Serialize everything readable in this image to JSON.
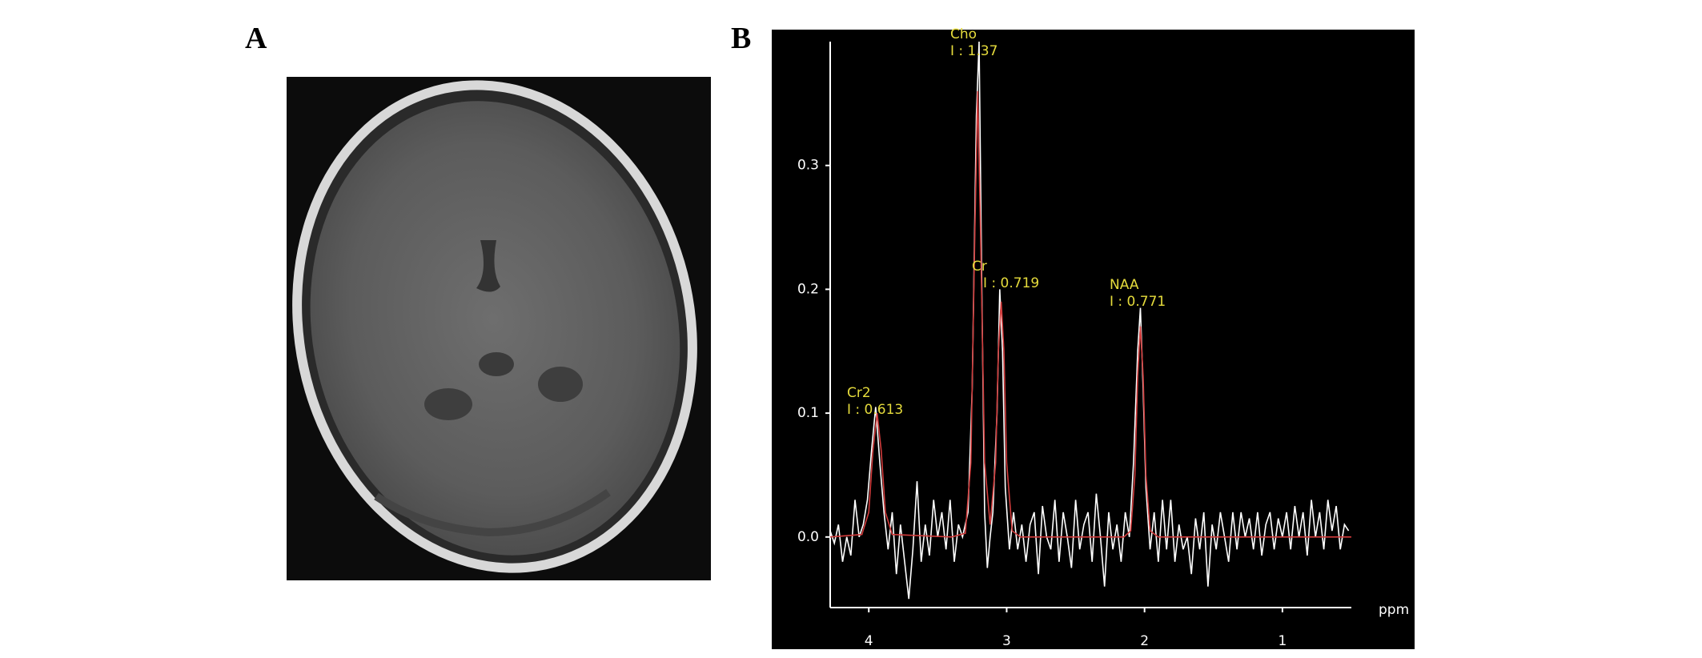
{
  "panel_a": {
    "label": "A"
  },
  "chart_data": {
    "type": "line",
    "label": "B",
    "x_label": "ppm",
    "xlim": [
      4.28,
      0.5
    ],
    "ylim": [
      -0.057,
      0.4
    ],
    "xticks": [
      4,
      3,
      2,
      1
    ],
    "yticks": [
      {
        "value": 0,
        "label": "0.0"
      },
      0.1,
      0.2,
      0.3
    ],
    "annotation_color": "#e6dc3c",
    "annotations": [
      [
        "Cr2",
        "I : 0.613"
      ],
      [
        "Cho",
        "I : 1.37"
      ],
      [
        "Cr",
        "I : 0.719"
      ],
      [
        "NAA",
        "I : 0.771"
      ]
    ],
    "series": [
      {
        "color": "#ffffff",
        "x": [
          4.28,
          4.25,
          4.22,
          4.19,
          4.16,
          4.13,
          4.1,
          4.07,
          4.04,
          4.01,
          3.98,
          3.95,
          3.92,
          3.89,
          3.86,
          3.83,
          3.8,
          3.77,
          3.74,
          3.71,
          3.68,
          3.65,
          3.62,
          3.59,
          3.56,
          3.53,
          3.5,
          3.47,
          3.44,
          3.41,
          3.38,
          3.35,
          3.32,
          3.28,
          3.25,
          3.22,
          3.2,
          3.18,
          3.16,
          3.14,
          3.12,
          3.1,
          3.07,
          3.05,
          3.03,
          3.01,
          2.98,
          2.95,
          2.92,
          2.89,
          2.86,
          2.83,
          2.8,
          2.77,
          2.74,
          2.71,
          2.68,
          2.65,
          2.62,
          2.59,
          2.56,
          2.53,
          2.5,
          2.47,
          2.44,
          2.41,
          2.38,
          2.35,
          2.32,
          2.29,
          2.26,
          2.23,
          2.2,
          2.17,
          2.14,
          2.11,
          2.08,
          2.05,
          2.03,
          2.01,
          1.99,
          1.96,
          1.93,
          1.9,
          1.87,
          1.84,
          1.81,
          1.78,
          1.75,
          1.72,
          1.69,
          1.66,
          1.63,
          1.6,
          1.57,
          1.54,
          1.51,
          1.48,
          1.45,
          1.42,
          1.39,
          1.36,
          1.33,
          1.3,
          1.27,
          1.24,
          1.21,
          1.18,
          1.15,
          1.12,
          1.09,
          1.06,
          1.03,
          1.0,
          0.97,
          0.94,
          0.91,
          0.88,
          0.85,
          0.82,
          0.79,
          0.76,
          0.73,
          0.7,
          0.67,
          0.64,
          0.61,
          0.58,
          0.55,
          0.52
        ],
        "values": [
          0.005,
          -0.005,
          0.01,
          -0.02,
          0.0,
          -0.015,
          0.03,
          0.0,
          0.01,
          0.03,
          0.07,
          0.105,
          0.06,
          0.02,
          -0.01,
          0.02,
          -0.03,
          0.01,
          -0.02,
          -0.05,
          -0.01,
          0.045,
          -0.02,
          0.01,
          -0.015,
          0.03,
          0.0,
          0.02,
          -0.01,
          0.03,
          -0.02,
          0.01,
          0.0,
          0.02,
          0.12,
          0.34,
          0.4,
          0.2,
          0.02,
          -0.025,
          0.0,
          0.02,
          0.1,
          0.2,
          0.15,
          0.04,
          -0.01,
          0.02,
          -0.01,
          0.01,
          -0.02,
          0.01,
          0.02,
          -0.03,
          0.025,
          0.0,
          -0.01,
          0.03,
          -0.02,
          0.02,
          0.0,
          -0.025,
          0.03,
          -0.01,
          0.01,
          0.02,
          -0.02,
          0.035,
          0.0,
          -0.04,
          0.02,
          -0.01,
          0.01,
          -0.02,
          0.02,
          0.0,
          0.06,
          0.15,
          0.185,
          0.12,
          0.04,
          -0.01,
          0.02,
          -0.02,
          0.03,
          -0.01,
          0.03,
          -0.02,
          0.01,
          -0.01,
          0.0,
          -0.03,
          0.015,
          -0.01,
          0.02,
          -0.04,
          0.01,
          -0.01,
          0.02,
          0.0,
          -0.02,
          0.02,
          -0.01,
          0.02,
          0.0,
          0.015,
          -0.01,
          0.02,
          -0.015,
          0.01,
          0.02,
          -0.01,
          0.015,
          0.0,
          0.02,
          -0.01,
          0.025,
          0.0,
          0.02,
          -0.015,
          0.03,
          0.0,
          0.02,
          -0.01,
          0.03,
          0.005,
          0.025,
          -0.01,
          0.01,
          0.005
        ]
      },
      {
        "color": "#d23c3c",
        "x": [
          4.28,
          4.05,
          4.0,
          3.97,
          3.94,
          3.91,
          3.88,
          3.83,
          3.4,
          3.3,
          3.26,
          3.23,
          3.21,
          3.19,
          3.16,
          3.12,
          3.08,
          3.06,
          3.04,
          3.02,
          3.0,
          2.96,
          2.9,
          2.15,
          2.1,
          2.07,
          2.05,
          2.03,
          2.01,
          1.99,
          1.96,
          1.9,
          0.5
        ],
        "values": [
          0,
          0.002,
          0.02,
          0.07,
          0.1,
          0.07,
          0.02,
          0.002,
          0,
          0.003,
          0.06,
          0.25,
          0.36,
          0.25,
          0.06,
          0.01,
          0.06,
          0.15,
          0.19,
          0.15,
          0.06,
          0.005,
          0,
          0,
          0.005,
          0.05,
          0.13,
          0.17,
          0.13,
          0.05,
          0.005,
          0,
          0
        ]
      }
    ]
  }
}
